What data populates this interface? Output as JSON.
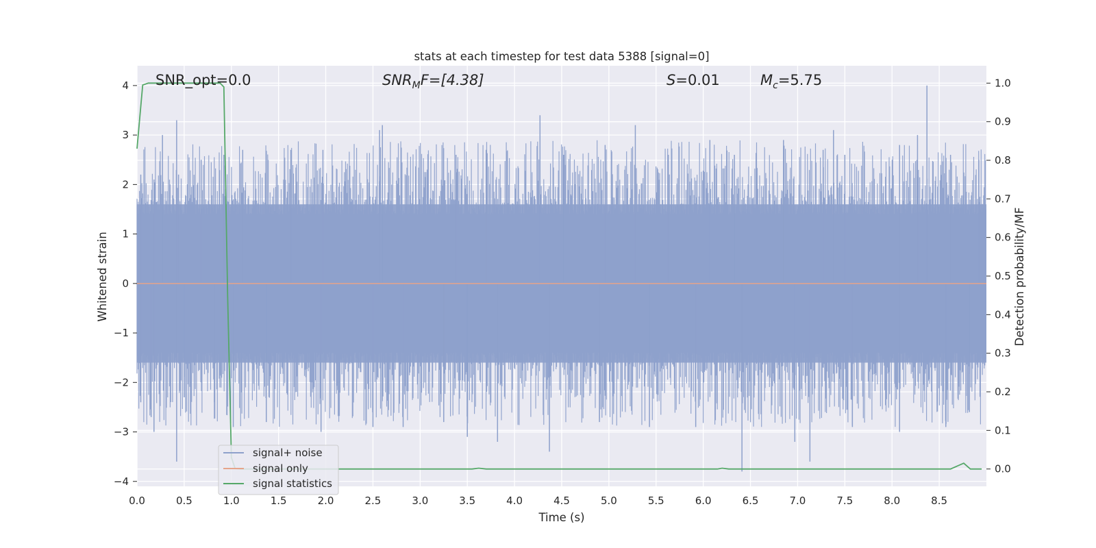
{
  "chart_data": {
    "type": "line",
    "title": "stats at each timestep for test data 5388 [signal=0]",
    "xlabel": "Time (s)",
    "ylabel_left": "Whitened strain",
    "ylabel_right": "Detection probability/MF",
    "xlim": [
      0.0,
      9.0
    ],
    "ylim_left": [
      -4.1,
      4.4
    ],
    "ylim_right": [
      -0.045,
      1.045
    ],
    "xticks": [
      "0.0",
      "0.5",
      "1.0",
      "1.5",
      "2.0",
      "2.5",
      "3.0",
      "3.5",
      "4.0",
      "4.5",
      "5.0",
      "5.5",
      "6.0",
      "6.5",
      "7.0",
      "7.5",
      "8.0",
      "8.5"
    ],
    "yticks_left": [
      "4",
      "3",
      "2",
      "1",
      "0",
      "−1",
      "−2",
      "−3",
      "−4"
    ],
    "yticks_right": [
      "1.0",
      "0.9",
      "0.8",
      "0.7",
      "0.6",
      "0.5",
      "0.4",
      "0.3",
      "0.2",
      "0.1",
      "0.0"
    ],
    "grid": true,
    "legend_position": "lower-left",
    "annotations": {
      "snr_opt": "SNR_opt=0.0",
      "snr_mf_sym": "SNR",
      "snr_mf_sub": "M",
      "snr_mf_rest": "F=[4.38]",
      "s_sym": "S",
      "s_rest": "=0.01",
      "mc_sym": "M",
      "mc_sub": "c",
      "mc_rest": "=5.75"
    },
    "series": [
      {
        "name": "signal+ noise",
        "axis": "left",
        "color": "#8da0cb",
        "style": "noise band",
        "band_envelope": [
          -1.6,
          1.6
        ],
        "peaks_x": [
          0.04,
          0.18,
          0.27,
          0.42,
          0.44,
          0.68,
          0.92,
          1.12,
          1.63,
          1.97,
          2.57,
          2.6,
          3.38,
          3.7,
          4.27,
          4.52,
          4.96,
          5.28,
          5.63,
          6.07,
          6.33,
          6.85,
          7.27,
          7.38,
          7.5,
          8.08,
          8.27,
          8.37,
          8.62,
          8.92
        ],
        "peaks_y": [
          2.2,
          2.1,
          3.0,
          3.3,
          2.2,
          2.5,
          2.6,
          2.7,
          2.7,
          2.7,
          3.1,
          3.2,
          2.6,
          2.7,
          3.4,
          2.6,
          2.8,
          3.2,
          2.6,
          2.9,
          2.6,
          2.9,
          2.7,
          3.1,
          2.6,
          2.8,
          3.0,
          4.0,
          2.6,
          2.5
        ],
        "troughs_x": [
          0.04,
          0.15,
          0.18,
          0.42,
          0.5,
          0.82,
          1.02,
          1.37,
          1.95,
          2.5,
          2.82,
          3.25,
          3.5,
          3.82,
          4.37,
          4.9,
          5.43,
          5.92,
          6.41,
          6.97,
          7.13,
          7.58,
          8.08,
          8.57,
          8.82
        ],
        "troughs_y": [
          -2.4,
          -2.7,
          -3.0,
          -3.6,
          -2.3,
          -2.4,
          -2.9,
          -2.8,
          -3.0,
          -2.9,
          -2.9,
          -2.8,
          -3.1,
          -3.2,
          -3.4,
          -2.8,
          -2.9,
          -2.9,
          -3.8,
          -3.2,
          -3.6,
          -2.9,
          -3.0,
          -2.9,
          -2.6
        ]
      },
      {
        "name": "signal only",
        "axis": "left",
        "color": "#e5a48a",
        "x": [
          0.0,
          9.0
        ],
        "y": [
          0.0,
          0.0
        ]
      },
      {
        "name": "signal statistics",
        "axis": "right",
        "color": "#55a868",
        "x": [
          0.0,
          0.06,
          0.12,
          0.2,
          0.88,
          0.92,
          0.96,
          1.0,
          1.04,
          1.1,
          3.55,
          3.62,
          3.7,
          6.15,
          6.2,
          6.27,
          8.62,
          8.76,
          8.83,
          8.95
        ],
        "y": [
          0.83,
          0.995,
          1.0,
          1.0,
          1.0,
          0.99,
          0.45,
          0.03,
          0.001,
          0.0,
          0.0,
          0.002,
          0.0,
          0.0,
          0.002,
          0.0,
          0.0,
          0.015,
          0.0,
          0.0
        ]
      }
    ]
  }
}
